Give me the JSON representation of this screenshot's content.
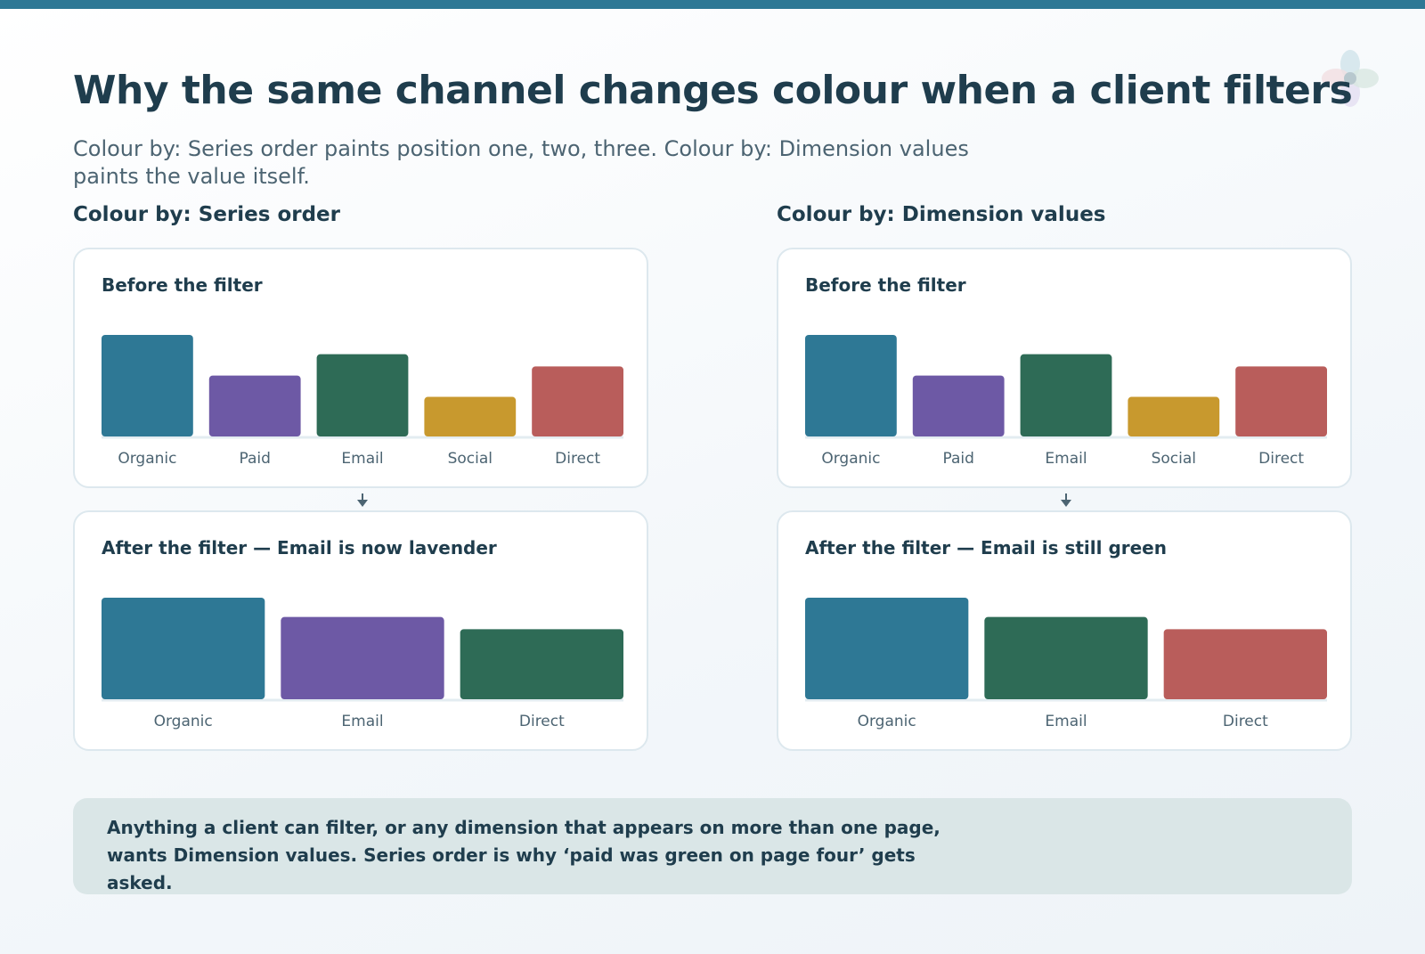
{
  "title": "Why the same channel changes colour when a client filters",
  "subtitle": "Colour by: Series order paints position one, two, three. Colour by: Dimension values paints the value itself.",
  "columns": [
    {
      "heading": "Colour by: Series order"
    },
    {
      "heading": "Colour by: Dimension values"
    }
  ],
  "callout": "Anything a client can filter, or any dimension that appears on more than one page, wants Dimension values. Series order is why ‘paid was green on page four’ gets asked.",
  "colors": {
    "teal": "#2e7895",
    "purple": "#6d59a5",
    "green": "#2e6b56",
    "mustard": "#c8992e",
    "red": "#b95d5b",
    "accent_strip": "#2e7895"
  },
  "chart_data": [
    {
      "type": "bar",
      "panel_title": "Before the filter",
      "categories": [
        "Organic",
        "Paid",
        "Email",
        "Social",
        "Direct"
      ],
      "values": [
        100,
        60,
        81,
        39,
        69
      ],
      "colors": [
        "#2e7895",
        "#6d59a5",
        "#2e6b56",
        "#c8992e",
        "#b95d5b"
      ],
      "ylim": [
        0,
        100
      ]
    },
    {
      "type": "bar",
      "panel_title": "After the filter — Email is now lavender",
      "categories": [
        "Organic",
        "Email",
        "Direct"
      ],
      "values": [
        100,
        81,
        69
      ],
      "colors": [
        "#2e7895",
        "#6d59a5",
        "#2e6b56"
      ],
      "ylim": [
        0,
        100
      ]
    },
    {
      "type": "bar",
      "panel_title": "Before the filter",
      "categories": [
        "Organic",
        "Paid",
        "Email",
        "Social",
        "Direct"
      ],
      "values": [
        100,
        60,
        81,
        39,
        69
      ],
      "colors": [
        "#2e7895",
        "#6d59a5",
        "#2e6b56",
        "#c8992e",
        "#b95d5b"
      ],
      "ylim": [
        0,
        100
      ]
    },
    {
      "type": "bar",
      "panel_title": "After the filter — Email is still green",
      "categories": [
        "Organic",
        "Email",
        "Direct"
      ],
      "values": [
        100,
        81,
        69
      ],
      "colors": [
        "#2e7895",
        "#2e6b56",
        "#b95d5b"
      ],
      "ylim": [
        0,
        100
      ]
    }
  ]
}
